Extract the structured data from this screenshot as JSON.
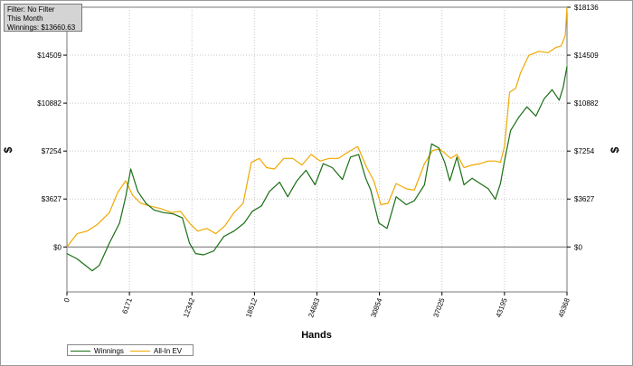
{
  "info": {
    "filter": "Filter: No Filter",
    "period": "This Month",
    "winnings": "Winnings: $13660.63"
  },
  "colors": {
    "winnings": "#1a6e14",
    "allin_ev": "#f0a800",
    "grid": "#c8c8c8",
    "zero": "#6e6e6e"
  },
  "chart_data": {
    "type": "line",
    "title": "",
    "xlabel": "Hands",
    "ylabel_left": "$",
    "ylabel_right": "$",
    "xlim": [
      0,
      49368
    ],
    "ylim": [
      -3400,
      18136
    ],
    "xticks": [
      0,
      6171,
      12342,
      18512,
      24683,
      30854,
      37025,
      43195,
      49368
    ],
    "yticks": [
      0,
      3627,
      7254,
      10882,
      14509,
      18136
    ],
    "ytick_labels": [
      "$0",
      "$3627",
      "$7254",
      "$10882",
      "$14509",
      "$18136"
    ],
    "grid": true,
    "legend": "bottom-left",
    "series": [
      {
        "name": "Winnings",
        "x": [
          0,
          1000,
          2500,
          3200,
          4200,
          5200,
          5800,
          6300,
          7000,
          7800,
          8600,
          9500,
          10500,
          11400,
          12100,
          12700,
          13500,
          14500,
          15500,
          16500,
          17500,
          18300,
          19200,
          20000,
          21000,
          21800,
          22700,
          23600,
          24500,
          25300,
          26200,
          27200,
          28000,
          28800,
          29500,
          30000,
          30800,
          31600,
          32500,
          33500,
          34300,
          35300,
          36000,
          36700,
          37300,
          37800,
          38500,
          39200,
          40000,
          40800,
          41600,
          42300,
          42800,
          43200,
          43800,
          44600,
          45400,
          46300,
          47100,
          47900,
          48600,
          49000,
          49368
        ],
        "y": [
          -500,
          -900,
          -1800,
          -1400,
          300,
          1800,
          3800,
          5900,
          4200,
          3300,
          2800,
          2600,
          2500,
          2200,
          300,
          -500,
          -600,
          -300,
          800,
          1200,
          1800,
          2700,
          3100,
          4200,
          4900,
          3800,
          5000,
          5800,
          4700,
          6300,
          6000,
          5100,
          6800,
          7000,
          5200,
          4300,
          1800,
          1400,
          3800,
          3200,
          3500,
          4700,
          7800,
          7500,
          6400,
          5000,
          6800,
          4700,
          5200,
          4800,
          4400,
          3600,
          4800,
          6500,
          8800,
          9800,
          10600,
          9900,
          11200,
          11900,
          11100,
          12100,
          13660
        ]
      },
      {
        "name": "All-In EV",
        "x": [
          0,
          1000,
          2000,
          3000,
          4200,
          5000,
          5800,
          6500,
          7300,
          8200,
          9300,
          10300,
          11200,
          12100,
          12900,
          13800,
          14700,
          15600,
          16500,
          17400,
          18200,
          19000,
          19700,
          20500,
          21400,
          22300,
          23200,
          24100,
          25000,
          25900,
          26800,
          27800,
          28700,
          29600,
          30300,
          31000,
          31700,
          32500,
          33500,
          34300,
          35300,
          36100,
          36800,
          37300,
          37900,
          38500,
          39200,
          40000,
          40800,
          41600,
          42300,
          42800,
          43200,
          43700,
          44300,
          44800,
          45600,
          46600,
          47500,
          48300,
          48800,
          49200,
          49368
        ],
        "y": [
          0,
          1000,
          1200,
          1700,
          2600,
          4100,
          5000,
          3900,
          3300,
          3100,
          2900,
          2600,
          2700,
          1800,
          1200,
          1400,
          1000,
          1600,
          2600,
          3300,
          6400,
          6700,
          6000,
          5900,
          6700,
          6700,
          6200,
          7000,
          6500,
          6700,
          6700,
          7200,
          7600,
          6000,
          5000,
          3200,
          3300,
          4800,
          4400,
          4300,
          6300,
          7300,
          7400,
          7100,
          6700,
          7000,
          6000,
          6200,
          6300,
          6500,
          6500,
          6400,
          7600,
          11700,
          12000,
          13200,
          14500,
          14800,
          14700,
          15100,
          15200,
          16000,
          18136
        ]
      }
    ]
  }
}
